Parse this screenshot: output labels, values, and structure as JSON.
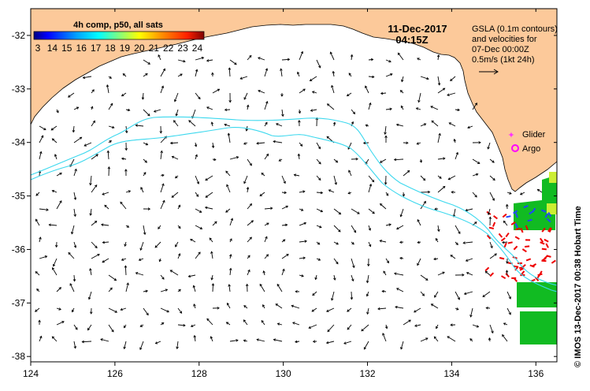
{
  "map": {
    "composite_label": "4h comp, p50, all sats",
    "date_line": "11-Dec-2017",
    "time_line": "04:15Z",
    "info_lines": [
      "GSLA (0.1m contours)",
      "and velocities for",
      "07-Dec 00:00Z",
      "0.5m/s (1kt 24h)"
    ],
    "legend": {
      "glider_label": "Glider",
      "argo_label": "Argo",
      "glider_color": "#ff33ff",
      "argo_color": "#ff00ff"
    },
    "colorbar": {
      "labels": [
        "3",
        "14",
        "15",
        "16",
        "17",
        "18",
        "19",
        "20",
        "21",
        "22",
        "23",
        "24"
      ],
      "colors": [
        "#000080",
        "#0000ff",
        "#0080ff",
        "#00c0ff",
        "#00ffff",
        "#40ffc0",
        "#80ff80",
        "#c0ff40",
        "#ffff00",
        "#ffc000",
        "#ff8000",
        "#ff2000",
        "#800000"
      ]
    },
    "credit": "© IMOS 13-Dec-2017 00:38 Hobart Time",
    "lon_ticks": [
      "124",
      "126",
      "128",
      "130",
      "132",
      "134",
      "136"
    ],
    "lat_ticks": [
      "-32",
      "-33",
      "-34",
      "-35",
      "-36",
      "-37",
      "-38"
    ],
    "colors": {
      "land": "#fcc99a",
      "ocean": "#ffffff",
      "contour": "#3bd8ee",
      "arrow": "#000000",
      "sst_green": "#11bb22",
      "sst_blue": "#2244ff",
      "sst_red": "#ee0000",
      "sst_yellow": "#ccee33"
    }
  }
}
